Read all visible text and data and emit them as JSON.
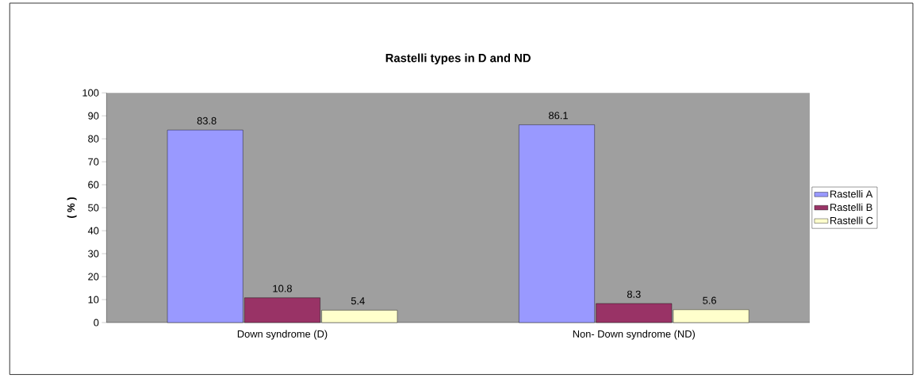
{
  "chart_data": {
    "type": "bar",
    "title": "Rastelli types in D and ND",
    "ylabel": "( % )",
    "categories": [
      "Down syndrome (D)",
      "Non- Down syndrome (ND)"
    ],
    "series": [
      {
        "name": "Rastelli A",
        "color": "#9999ff",
        "values": [
          83.8,
          86.1
        ]
      },
      {
        "name": "Rastelli B",
        "color": "#993366",
        "values": [
          10.8,
          8.3
        ]
      },
      {
        "name": "Rastelli C",
        "color": "#ffffcc",
        "values": [
          5.4,
          5.6
        ]
      }
    ],
    "ylim": [
      0,
      100
    ],
    "yticks": [
      0,
      10,
      20,
      30,
      40,
      50,
      60,
      70,
      80,
      90,
      100
    ],
    "data_labels": true,
    "legend": "right"
  }
}
